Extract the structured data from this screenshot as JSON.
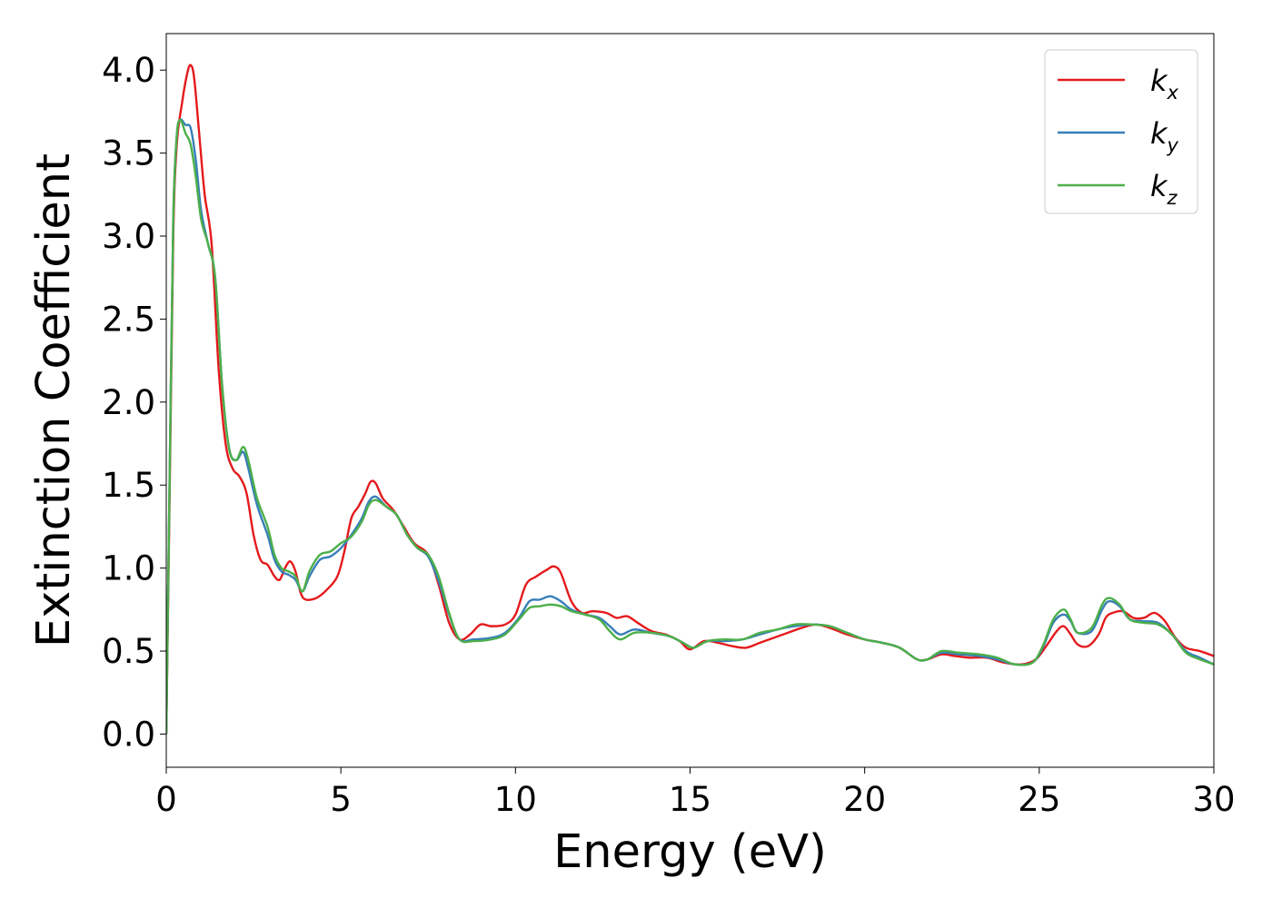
{
  "chart_data": {
    "type": "line",
    "title": "",
    "xlabel": "Energy (eV)",
    "ylabel": "Extinction Coefficient",
    "xlim": [
      0,
      30
    ],
    "ylim": [
      -0.2,
      4.22
    ],
    "xticks": [
      0,
      5,
      10,
      15,
      20,
      25,
      30
    ],
    "xtick_labels": [
      "0",
      "5",
      "10",
      "15",
      "20",
      "25",
      "30"
    ],
    "yticks": [
      0.0,
      0.5,
      1.0,
      1.5,
      2.0,
      2.5,
      3.0,
      3.5,
      4.0
    ],
    "ytick_labels": [
      "0.0",
      "0.5",
      "1.0",
      "1.5",
      "2.0",
      "2.5",
      "3.0",
      "3.5",
      "4.0"
    ],
    "grid": false,
    "legend_position": "top-right",
    "series": [
      {
        "name": "k_x",
        "label_main": "k",
        "label_sub": "x",
        "color": "#e41a1c",
        "points": [
          [
            0,
            0.0
          ],
          [
            0.1,
            1.5
          ],
          [
            0.2,
            3.0
          ],
          [
            0.3,
            3.55
          ],
          [
            0.45,
            3.8
          ],
          [
            0.6,
            3.98
          ],
          [
            0.7,
            4.03
          ],
          [
            0.8,
            3.95
          ],
          [
            0.95,
            3.6
          ],
          [
            1.1,
            3.25
          ],
          [
            1.3,
            2.95
          ],
          [
            1.5,
            2.2
          ],
          [
            1.7,
            1.75
          ],
          [
            1.9,
            1.6
          ],
          [
            2.1,
            1.55
          ],
          [
            2.3,
            1.45
          ],
          [
            2.5,
            1.2
          ],
          [
            2.7,
            1.05
          ],
          [
            2.9,
            1.02
          ],
          [
            3.1,
            0.95
          ],
          [
            3.25,
            0.93
          ],
          [
            3.4,
            1.0
          ],
          [
            3.55,
            1.04
          ],
          [
            3.7,
            0.98
          ],
          [
            3.85,
            0.85
          ],
          [
            4.0,
            0.81
          ],
          [
            4.3,
            0.82
          ],
          [
            4.6,
            0.87
          ],
          [
            4.9,
            0.95
          ],
          [
            5.1,
            1.1
          ],
          [
            5.3,
            1.3
          ],
          [
            5.5,
            1.37
          ],
          [
            5.7,
            1.45
          ],
          [
            5.85,
            1.52
          ],
          [
            6.0,
            1.51
          ],
          [
            6.2,
            1.42
          ],
          [
            6.5,
            1.35
          ],
          [
            6.8,
            1.25
          ],
          [
            7.1,
            1.15
          ],
          [
            7.5,
            1.08
          ],
          [
            7.8,
            0.9
          ],
          [
            8.1,
            0.67
          ],
          [
            8.4,
            0.57
          ],
          [
            8.7,
            0.6
          ],
          [
            9.0,
            0.66
          ],
          [
            9.3,
            0.65
          ],
          [
            9.7,
            0.66
          ],
          [
            10.0,
            0.72
          ],
          [
            10.3,
            0.9
          ],
          [
            10.6,
            0.95
          ],
          [
            10.9,
            0.99
          ],
          [
            11.1,
            1.01
          ],
          [
            11.3,
            0.97
          ],
          [
            11.6,
            0.8
          ],
          [
            11.9,
            0.73
          ],
          [
            12.2,
            0.74
          ],
          [
            12.6,
            0.73
          ],
          [
            12.9,
            0.7
          ],
          [
            13.2,
            0.71
          ],
          [
            13.5,
            0.67
          ],
          [
            13.9,
            0.62
          ],
          [
            14.3,
            0.6
          ],
          [
            14.7,
            0.56
          ],
          [
            15.0,
            0.51
          ],
          [
            15.4,
            0.56
          ],
          [
            15.8,
            0.55
          ],
          [
            16.2,
            0.53
          ],
          [
            16.6,
            0.52
          ],
          [
            17.0,
            0.55
          ],
          [
            17.4,
            0.58
          ],
          [
            17.8,
            0.61
          ],
          [
            18.2,
            0.64
          ],
          [
            18.6,
            0.66
          ],
          [
            19.0,
            0.64
          ],
          [
            19.5,
            0.6
          ],
          [
            20.0,
            0.57
          ],
          [
            20.5,
            0.55
          ],
          [
            21.0,
            0.52
          ],
          [
            21.5,
            0.45
          ],
          [
            21.8,
            0.45
          ],
          [
            22.2,
            0.48
          ],
          [
            22.6,
            0.47
          ],
          [
            23.0,
            0.46
          ],
          [
            23.5,
            0.46
          ],
          [
            24.0,
            0.43
          ],
          [
            24.5,
            0.42
          ],
          [
            24.9,
            0.45
          ],
          [
            25.2,
            0.53
          ],
          [
            25.5,
            0.62
          ],
          [
            25.7,
            0.65
          ],
          [
            25.9,
            0.6
          ],
          [
            26.1,
            0.54
          ],
          [
            26.4,
            0.53
          ],
          [
            26.7,
            0.6
          ],
          [
            26.9,
            0.7
          ],
          [
            27.1,
            0.73
          ],
          [
            27.4,
            0.74
          ],
          [
            27.7,
            0.7
          ],
          [
            28.0,
            0.7
          ],
          [
            28.3,
            0.73
          ],
          [
            28.6,
            0.68
          ],
          [
            28.9,
            0.58
          ],
          [
            29.2,
            0.52
          ],
          [
            29.6,
            0.5
          ],
          [
            30.0,
            0.47
          ]
        ]
      },
      {
        "name": "k_y",
        "label_main": "k",
        "label_sub": "y",
        "color": "#377eb8",
        "points": [
          [
            0,
            0.0
          ],
          [
            0.1,
            1.6
          ],
          [
            0.2,
            3.1
          ],
          [
            0.3,
            3.6
          ],
          [
            0.4,
            3.7
          ],
          [
            0.55,
            3.67
          ],
          [
            0.7,
            3.65
          ],
          [
            0.85,
            3.45
          ],
          [
            1.0,
            3.15
          ],
          [
            1.2,
            2.95
          ],
          [
            1.4,
            2.75
          ],
          [
            1.6,
            2.1
          ],
          [
            1.8,
            1.72
          ],
          [
            2.0,
            1.65
          ],
          [
            2.2,
            1.7
          ],
          [
            2.35,
            1.6
          ],
          [
            2.6,
            1.38
          ],
          [
            2.9,
            1.2
          ],
          [
            3.1,
            1.05
          ],
          [
            3.3,
            0.98
          ],
          [
            3.5,
            0.96
          ],
          [
            3.7,
            0.93
          ],
          [
            3.9,
            0.86
          ],
          [
            4.1,
            0.95
          ],
          [
            4.4,
            1.05
          ],
          [
            4.7,
            1.07
          ],
          [
            5.0,
            1.12
          ],
          [
            5.3,
            1.2
          ],
          [
            5.6,
            1.3
          ],
          [
            5.8,
            1.4
          ],
          [
            6.0,
            1.43
          ],
          [
            6.3,
            1.37
          ],
          [
            6.6,
            1.32
          ],
          [
            6.9,
            1.2
          ],
          [
            7.2,
            1.12
          ],
          [
            7.5,
            1.07
          ],
          [
            7.8,
            0.92
          ],
          [
            8.1,
            0.72
          ],
          [
            8.4,
            0.57
          ],
          [
            8.8,
            0.57
          ],
          [
            9.3,
            0.58
          ],
          [
            9.7,
            0.61
          ],
          [
            10.1,
            0.7
          ],
          [
            10.4,
            0.8
          ],
          [
            10.7,
            0.81
          ],
          [
            11.0,
            0.83
          ],
          [
            11.3,
            0.8
          ],
          [
            11.6,
            0.75
          ],
          [
            12.0,
            0.72
          ],
          [
            12.4,
            0.7
          ],
          [
            12.7,
            0.65
          ],
          [
            13.0,
            0.6
          ],
          [
            13.4,
            0.63
          ],
          [
            13.9,
            0.61
          ],
          [
            14.4,
            0.59
          ],
          [
            14.8,
            0.55
          ],
          [
            15.1,
            0.52
          ],
          [
            15.5,
            0.56
          ],
          [
            16.0,
            0.56
          ],
          [
            16.5,
            0.57
          ],
          [
            17.0,
            0.6
          ],
          [
            17.5,
            0.63
          ],
          [
            18.0,
            0.65
          ],
          [
            18.5,
            0.66
          ],
          [
            19.0,
            0.65
          ],
          [
            19.5,
            0.61
          ],
          [
            20.0,
            0.57
          ],
          [
            20.5,
            0.55
          ],
          [
            21.0,
            0.52
          ],
          [
            21.5,
            0.45
          ],
          [
            21.8,
            0.45
          ],
          [
            22.2,
            0.49
          ],
          [
            22.7,
            0.48
          ],
          [
            23.3,
            0.47
          ],
          [
            23.8,
            0.45
          ],
          [
            24.3,
            0.42
          ],
          [
            24.8,
            0.43
          ],
          [
            25.1,
            0.52
          ],
          [
            25.4,
            0.67
          ],
          [
            25.7,
            0.72
          ],
          [
            25.9,
            0.68
          ],
          [
            26.1,
            0.61
          ],
          [
            26.5,
            0.62
          ],
          [
            26.8,
            0.75
          ],
          [
            27.0,
            0.8
          ],
          [
            27.3,
            0.77
          ],
          [
            27.6,
            0.69
          ],
          [
            28.0,
            0.68
          ],
          [
            28.4,
            0.67
          ],
          [
            28.8,
            0.6
          ],
          [
            29.2,
            0.5
          ],
          [
            29.6,
            0.46
          ],
          [
            30.0,
            0.42
          ]
        ]
      },
      {
        "name": "k_z",
        "label_main": "k",
        "label_sub": "z",
        "color": "#4daf4a",
        "points": [
          [
            0,
            0.0
          ],
          [
            0.1,
            1.6
          ],
          [
            0.2,
            3.1
          ],
          [
            0.3,
            3.6
          ],
          [
            0.4,
            3.7
          ],
          [
            0.55,
            3.62
          ],
          [
            0.7,
            3.55
          ],
          [
            0.85,
            3.35
          ],
          [
            1.0,
            3.1
          ],
          [
            1.2,
            2.95
          ],
          [
            1.4,
            2.75
          ],
          [
            1.6,
            2.1
          ],
          [
            1.8,
            1.72
          ],
          [
            2.0,
            1.65
          ],
          [
            2.2,
            1.73
          ],
          [
            2.35,
            1.65
          ],
          [
            2.6,
            1.42
          ],
          [
            2.9,
            1.25
          ],
          [
            3.1,
            1.08
          ],
          [
            3.3,
            1.0
          ],
          [
            3.5,
            0.98
          ],
          [
            3.7,
            0.95
          ],
          [
            3.9,
            0.86
          ],
          [
            4.1,
            0.98
          ],
          [
            4.4,
            1.08
          ],
          [
            4.7,
            1.1
          ],
          [
            5.0,
            1.15
          ],
          [
            5.3,
            1.19
          ],
          [
            5.6,
            1.28
          ],
          [
            5.8,
            1.38
          ],
          [
            6.0,
            1.41
          ],
          [
            6.3,
            1.37
          ],
          [
            6.6,
            1.32
          ],
          [
            6.9,
            1.2
          ],
          [
            7.2,
            1.12
          ],
          [
            7.5,
            1.08
          ],
          [
            7.8,
            0.95
          ],
          [
            8.1,
            0.73
          ],
          [
            8.4,
            0.57
          ],
          [
            8.8,
            0.56
          ],
          [
            9.3,
            0.57
          ],
          [
            9.7,
            0.6
          ],
          [
            10.1,
            0.69
          ],
          [
            10.4,
            0.76
          ],
          [
            10.7,
            0.77
          ],
          [
            11.0,
            0.78
          ],
          [
            11.3,
            0.77
          ],
          [
            11.6,
            0.74
          ],
          [
            12.0,
            0.72
          ],
          [
            12.4,
            0.69
          ],
          [
            12.7,
            0.62
          ],
          [
            13.0,
            0.57
          ],
          [
            13.4,
            0.61
          ],
          [
            13.9,
            0.61
          ],
          [
            14.4,
            0.59
          ],
          [
            14.8,
            0.55
          ],
          [
            15.1,
            0.52
          ],
          [
            15.5,
            0.56
          ],
          [
            16.0,
            0.57
          ],
          [
            16.5,
            0.57
          ],
          [
            17.0,
            0.61
          ],
          [
            17.5,
            0.63
          ],
          [
            18.0,
            0.66
          ],
          [
            18.5,
            0.66
          ],
          [
            19.0,
            0.65
          ],
          [
            19.5,
            0.61
          ],
          [
            20.0,
            0.57
          ],
          [
            20.5,
            0.55
          ],
          [
            21.0,
            0.52
          ],
          [
            21.5,
            0.45
          ],
          [
            21.8,
            0.45
          ],
          [
            22.2,
            0.5
          ],
          [
            22.7,
            0.49
          ],
          [
            23.3,
            0.48
          ],
          [
            23.8,
            0.46
          ],
          [
            24.3,
            0.42
          ],
          [
            24.8,
            0.43
          ],
          [
            25.1,
            0.53
          ],
          [
            25.4,
            0.69
          ],
          [
            25.7,
            0.75
          ],
          [
            25.9,
            0.69
          ],
          [
            26.1,
            0.61
          ],
          [
            26.5,
            0.64
          ],
          [
            26.8,
            0.78
          ],
          [
            27.0,
            0.82
          ],
          [
            27.3,
            0.78
          ],
          [
            27.6,
            0.69
          ],
          [
            28.0,
            0.67
          ],
          [
            28.4,
            0.66
          ],
          [
            28.8,
            0.6
          ],
          [
            29.2,
            0.49
          ],
          [
            29.6,
            0.45
          ],
          [
            30.0,
            0.42
          ]
        ]
      }
    ]
  }
}
